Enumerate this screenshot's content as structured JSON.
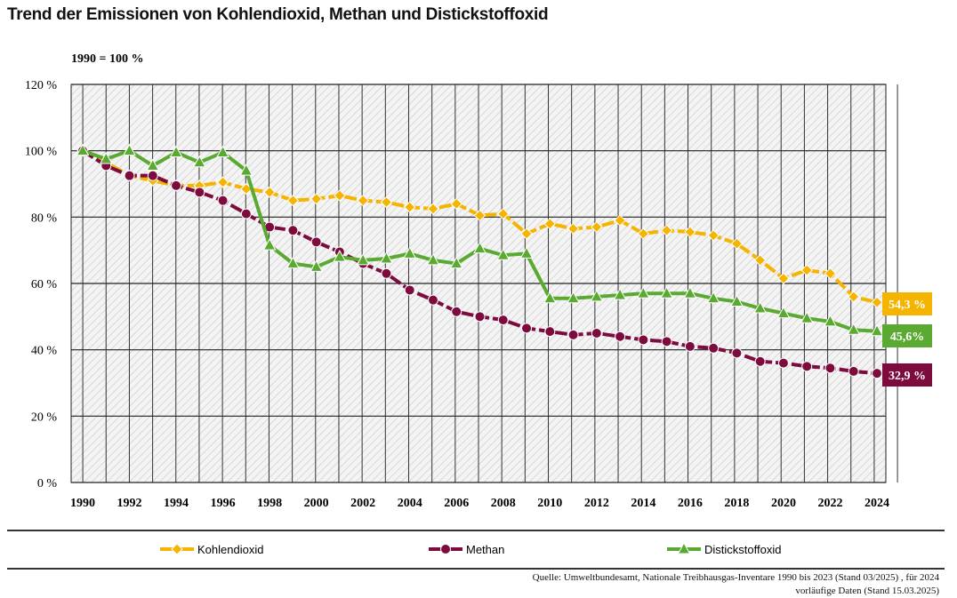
{
  "chart_data": {
    "type": "line",
    "title": "Trend der Emissionen von Kohlendioxid, Methan und Distickstoffoxid",
    "subtitle": "1990 = 100 %",
    "xlabel": "",
    "ylabel": "",
    "ylim": [
      0,
      120
    ],
    "yticks": [
      "0 %",
      "20 %",
      "40 %",
      "60 %",
      "80 %",
      "100 %",
      "120 %"
    ],
    "x": [
      1990,
      1991,
      1992,
      1993,
      1994,
      1995,
      1996,
      1997,
      1998,
      1999,
      2000,
      2001,
      2002,
      2003,
      2004,
      2005,
      2006,
      2007,
      2008,
      2009,
      2010,
      2011,
      2012,
      2013,
      2014,
      2015,
      2016,
      2017,
      2018,
      2019,
      2020,
      2021,
      2022,
      2023,
      2024
    ],
    "xticks": [
      "1990",
      "1992",
      "1994",
      "1996",
      "1998",
      "2000",
      "2002",
      "2004",
      "2006",
      "2008",
      "2010",
      "2012",
      "2014",
      "2016",
      "2018",
      "2020",
      "2022",
      "2024"
    ],
    "grid": true,
    "legend": "bottom",
    "series": [
      {
        "name": "Kohlendioxid",
        "color": "#f5b400",
        "marker": "diamond",
        "end_label": "54,3 %",
        "values": [
          100,
          96.5,
          92.5,
          91,
          89.5,
          89.5,
          90.5,
          88.5,
          87.5,
          85,
          85.5,
          86.5,
          85,
          84.5,
          83,
          82.5,
          84,
          80.5,
          81,
          75,
          78,
          76.5,
          77,
          79,
          75,
          76,
          75.5,
          74.5,
          72,
          67,
          61.5,
          64,
          63,
          56,
          54.3
        ]
      },
      {
        "name": "Methan",
        "color": "#7d0b3e",
        "marker": "circle",
        "end_label": "32,9 %",
        "values": [
          100,
          95.5,
          92.5,
          92.5,
          89.5,
          87.5,
          85,
          81,
          77,
          76,
          72.5,
          69.5,
          66,
          63,
          58,
          55,
          51.5,
          50,
          49,
          46.5,
          45.5,
          44.5,
          45,
          44,
          43,
          42.5,
          41,
          40.5,
          39,
          36.5,
          36,
          35,
          34.5,
          33.5,
          32.9
        ]
      },
      {
        "name": "Distickstoffoxid",
        "color": "#5aaa32",
        "marker": "triangle",
        "end_label": "45,6%",
        "values": [
          100,
          97.5,
          100,
          95.5,
          99.5,
          96.5,
          99.5,
          94,
          71.5,
          66,
          65,
          68,
          67,
          67.5,
          69,
          67,
          66,
          70.5,
          68.5,
          69,
          55.5,
          55.5,
          56,
          56.5,
          57,
          57,
          57,
          55.5,
          54.5,
          52.5,
          51,
          49.5,
          48.5,
          46,
          45.6
        ]
      }
    ]
  },
  "source": {
    "line1": "Quelle: Umweltbundesamt, Nationale Treibhausgas-Inventare 1990 bis 2023 (Stand 03/2025) , für 2024",
    "line2": "vorläufige Daten (Stand 15.03.2025)"
  }
}
